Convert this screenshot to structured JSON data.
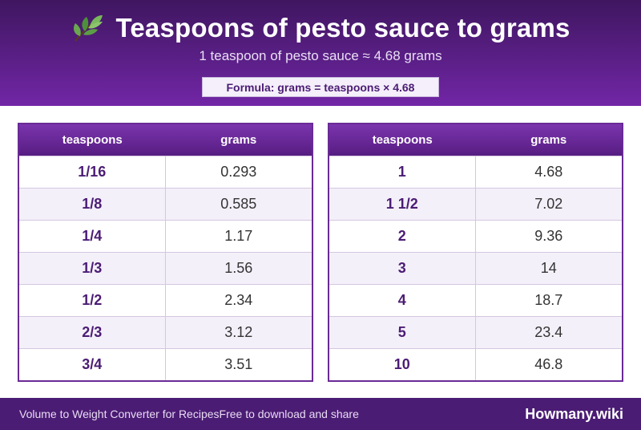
{
  "header": {
    "icon": "herb-leaf-icon",
    "title": "Teaspoons of pesto sauce to grams",
    "subtitle": "1 teaspoon of pesto sauce ≈ 4.68 grams",
    "formula": "Formula: grams = teaspoons × 4.68"
  },
  "tables": [
    {
      "columns": [
        "teaspoons",
        "grams"
      ],
      "rows": [
        [
          "1/16",
          "0.293"
        ],
        [
          "1/8",
          "0.585"
        ],
        [
          "1/4",
          "1.17"
        ],
        [
          "1/3",
          "1.56"
        ],
        [
          "1/2",
          "2.34"
        ],
        [
          "2/3",
          "3.12"
        ],
        [
          "3/4",
          "3.51"
        ]
      ]
    },
    {
      "columns": [
        "teaspoons",
        "grams"
      ],
      "rows": [
        [
          "1",
          "4.68"
        ],
        [
          "1 1/2",
          "7.02"
        ],
        [
          "2",
          "9.36"
        ],
        [
          "3",
          "14"
        ],
        [
          "4",
          "18.7"
        ],
        [
          "5",
          "23.4"
        ],
        [
          "10",
          "46.8"
        ]
      ]
    }
  ],
  "footer": {
    "left_text": "Volume to Weight Converter for RecipesFree to download and share",
    "brand": "Howmany.wiki"
  },
  "colors": {
    "header_dark": "#3f1660",
    "header_light": "#7226a6",
    "accent": "#4b1c74",
    "row_alt": "#f4f0fa"
  }
}
